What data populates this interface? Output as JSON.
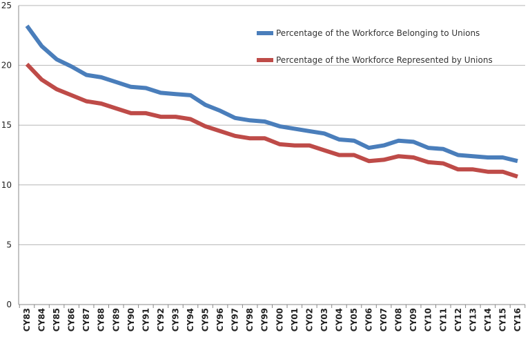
{
  "chart_data": {
    "type": "line",
    "title": "",
    "xlabel": "",
    "ylabel": "",
    "ylim": [
      0,
      25
    ],
    "yticks": [
      0,
      5,
      10,
      15,
      20,
      25
    ],
    "grid": true,
    "legend_position": "top-right",
    "categories": [
      "CY83",
      "CY84",
      "CY85",
      "CY86",
      "CY87",
      "CY88",
      "CY89",
      "CY90",
      "CY91",
      "CY92",
      "CY93",
      "CY94",
      "CY95",
      "CY96",
      "CY97",
      "CY98",
      "CY99",
      "CY00",
      "CY01",
      "CY02",
      "CY03",
      "CY04",
      "CY05",
      "CY06",
      "CY07",
      "CY08",
      "CY09",
      "CY10",
      "CY11",
      "CY12",
      "CY13",
      "CY14",
      "CY15",
      "CY16"
    ],
    "series": [
      {
        "name": "Percentage of the Workforce Belonging to Unions",
        "color": "#4a7ebb",
        "values": [
          23.3,
          21.6,
          20.5,
          19.9,
          19.2,
          19.0,
          18.6,
          18.2,
          18.1,
          17.7,
          17.6,
          17.5,
          16.7,
          16.2,
          15.6,
          15.4,
          15.3,
          14.9,
          14.7,
          14.5,
          14.3,
          13.8,
          13.7,
          13.1,
          13.3,
          13.7,
          13.6,
          13.1,
          13.0,
          12.5,
          12.4,
          12.3,
          12.3,
          12.0
        ]
      },
      {
        "name": "Percentage of the Workforce Represented by Unions",
        "color": "#be4b48",
        "values": [
          20.1,
          18.8,
          18.0,
          17.5,
          17.0,
          16.8,
          16.4,
          16.0,
          16.0,
          15.7,
          15.7,
          15.5,
          14.9,
          14.5,
          14.1,
          13.9,
          13.9,
          13.4,
          13.3,
          13.3,
          12.9,
          12.5,
          12.5,
          12.0,
          12.1,
          12.4,
          12.3,
          11.9,
          11.8,
          11.3,
          11.3,
          11.1,
          11.1,
          10.7
        ]
      }
    ]
  }
}
